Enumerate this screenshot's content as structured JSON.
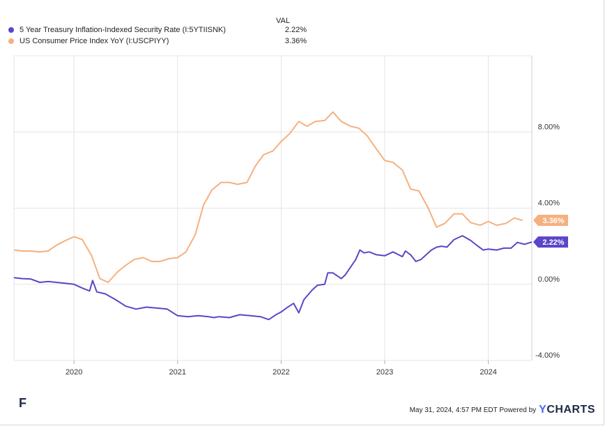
{
  "chart_data": {
    "type": "line",
    "title": "",
    "xlabel": "",
    "ylabel": "",
    "x_tick_labels": [
      "2020",
      "2021",
      "2022",
      "2023",
      "2024"
    ],
    "y_tick_labels": [
      "-4.00%",
      "0.00%",
      "4.00%",
      "8.00%"
    ],
    "ylim": [
      -4.0,
      12.0
    ],
    "xlim": [
      2019.42,
      2024.42
    ],
    "legend_header": "VAL",
    "series": [
      {
        "name": "5 Year Treasury Inflation-Indexed Security Rate (I:5YTIISNK)",
        "color": "#5b45c8",
        "last_value": "2.22%",
        "points": [
          [
            2019.42,
            0.35
          ],
          [
            2019.5,
            0.3
          ],
          [
            2019.58,
            0.28
          ],
          [
            2019.67,
            0.1
          ],
          [
            2019.75,
            0.15
          ],
          [
            2019.83,
            0.1
          ],
          [
            2019.92,
            0.05
          ],
          [
            2020.0,
            0.0
          ],
          [
            2020.08,
            -0.2
          ],
          [
            2020.15,
            -0.35
          ],
          [
            2020.18,
            0.2
          ],
          [
            2020.22,
            -0.4
          ],
          [
            2020.3,
            -0.5
          ],
          [
            2020.4,
            -0.8
          ],
          [
            2020.5,
            -1.15
          ],
          [
            2020.6,
            -1.3
          ],
          [
            2020.7,
            -1.2
          ],
          [
            2020.8,
            -1.25
          ],
          [
            2020.9,
            -1.3
          ],
          [
            2021.0,
            -1.65
          ],
          [
            2021.1,
            -1.7
          ],
          [
            2021.2,
            -1.65
          ],
          [
            2021.3,
            -1.7
          ],
          [
            2021.35,
            -1.75
          ],
          [
            2021.4,
            -1.7
          ],
          [
            2021.5,
            -1.75
          ],
          [
            2021.6,
            -1.6
          ],
          [
            2021.7,
            -1.65
          ],
          [
            2021.8,
            -1.7
          ],
          [
            2021.88,
            -1.85
          ],
          [
            2021.95,
            -1.6
          ],
          [
            2022.0,
            -1.45
          ],
          [
            2022.05,
            -1.25
          ],
          [
            2022.12,
            -1.0
          ],
          [
            2022.17,
            -1.5
          ],
          [
            2022.22,
            -0.8
          ],
          [
            2022.3,
            -0.3
          ],
          [
            2022.35,
            -0.05
          ],
          [
            2022.42,
            0.0
          ],
          [
            2022.45,
            0.6
          ],
          [
            2022.5,
            0.6
          ],
          [
            2022.58,
            0.3
          ],
          [
            2022.62,
            0.5
          ],
          [
            2022.67,
            0.9
          ],
          [
            2022.72,
            1.3
          ],
          [
            2022.76,
            1.8
          ],
          [
            2022.8,
            1.65
          ],
          [
            2022.85,
            1.7
          ],
          [
            2022.92,
            1.55
          ],
          [
            2023.0,
            1.5
          ],
          [
            2023.08,
            1.7
          ],
          [
            2023.17,
            1.45
          ],
          [
            2023.2,
            1.75
          ],
          [
            2023.25,
            1.55
          ],
          [
            2023.3,
            1.2
          ],
          [
            2023.35,
            1.3
          ],
          [
            2023.4,
            1.55
          ],
          [
            2023.45,
            1.8
          ],
          [
            2023.5,
            1.95
          ],
          [
            2023.55,
            2.0
          ],
          [
            2023.6,
            1.95
          ],
          [
            2023.67,
            2.35
          ],
          [
            2023.75,
            2.55
          ],
          [
            2023.83,
            2.3
          ],
          [
            2023.9,
            2.0
          ],
          [
            2023.95,
            1.8
          ],
          [
            2024.0,
            1.85
          ],
          [
            2024.08,
            1.8
          ],
          [
            2024.15,
            1.9
          ],
          [
            2024.22,
            1.9
          ],
          [
            2024.28,
            2.2
          ],
          [
            2024.35,
            2.1
          ],
          [
            2024.42,
            2.22
          ]
        ]
      },
      {
        "name": "US Consumer Price Index YoY (I:USCPIYY)",
        "color": "#f5b07f",
        "last_value": "3.36%",
        "points": [
          [
            2019.42,
            1.8
          ],
          [
            2019.5,
            1.75
          ],
          [
            2019.58,
            1.75
          ],
          [
            2019.67,
            1.7
          ],
          [
            2019.75,
            1.75
          ],
          [
            2019.83,
            2.05
          ],
          [
            2019.92,
            2.3
          ],
          [
            2020.0,
            2.5
          ],
          [
            2020.08,
            2.35
          ],
          [
            2020.17,
            1.5
          ],
          [
            2020.25,
            0.3
          ],
          [
            2020.33,
            0.1
          ],
          [
            2020.42,
            0.65
          ],
          [
            2020.5,
            1.0
          ],
          [
            2020.58,
            1.3
          ],
          [
            2020.67,
            1.4
          ],
          [
            2020.75,
            1.2
          ],
          [
            2020.83,
            1.2
          ],
          [
            2020.92,
            1.35
          ],
          [
            2021.0,
            1.4
          ],
          [
            2021.08,
            1.7
          ],
          [
            2021.17,
            2.6
          ],
          [
            2021.25,
            4.15
          ],
          [
            2021.33,
            4.95
          ],
          [
            2021.42,
            5.35
          ],
          [
            2021.5,
            5.35
          ],
          [
            2021.58,
            5.25
          ],
          [
            2021.67,
            5.35
          ],
          [
            2021.75,
            6.2
          ],
          [
            2021.83,
            6.8
          ],
          [
            2021.92,
            7.0
          ],
          [
            2022.0,
            7.5
          ],
          [
            2022.08,
            7.9
          ],
          [
            2022.17,
            8.55
          ],
          [
            2022.25,
            8.3
          ],
          [
            2022.33,
            8.55
          ],
          [
            2022.42,
            8.6
          ],
          [
            2022.5,
            9.05
          ],
          [
            2022.58,
            8.55
          ],
          [
            2022.67,
            8.3
          ],
          [
            2022.75,
            8.2
          ],
          [
            2022.83,
            7.8
          ],
          [
            2022.92,
            7.1
          ],
          [
            2023.0,
            6.5
          ],
          [
            2023.08,
            6.4
          ],
          [
            2023.17,
            6.0
          ],
          [
            2023.25,
            5.0
          ],
          [
            2023.33,
            4.9
          ],
          [
            2023.42,
            4.0
          ],
          [
            2023.5,
            3.0
          ],
          [
            2023.58,
            3.2
          ],
          [
            2023.67,
            3.7
          ],
          [
            2023.75,
            3.7
          ],
          [
            2023.83,
            3.24
          ],
          [
            2023.92,
            3.1
          ],
          [
            2024.0,
            3.3
          ],
          [
            2024.08,
            3.1
          ],
          [
            2024.17,
            3.2
          ],
          [
            2024.25,
            3.48
          ],
          [
            2024.33,
            3.36
          ]
        ]
      }
    ]
  },
  "footer": {
    "timestamp": "May 31, 2024, 4:57 PM EDT Powered by",
    "brand_y": "Y",
    "brand_rest": "CHARTS",
    "logo_glyph": "F"
  },
  "colors": {
    "series1": "#5b45c8",
    "series2": "#f5b07f",
    "grid": "#e4e4e4",
    "axis_text": "#333333"
  }
}
